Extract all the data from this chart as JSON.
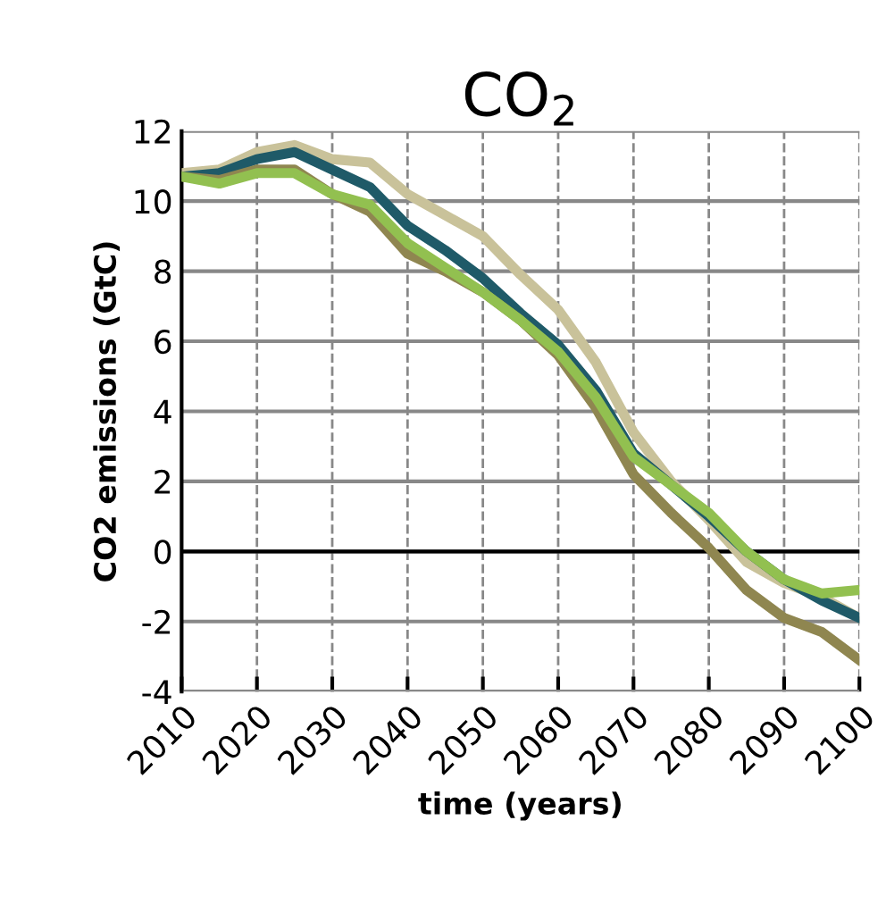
{
  "chart_data": {
    "type": "line",
    "title": "CO$_{2}$",
    "xlabel": "time (years)",
    "ylabel": "CO2 emissions (GtC)",
    "x": [
      2010,
      2015,
      2020,
      2025,
      2030,
      2035,
      2040,
      2045,
      2050,
      2055,
      2060,
      2065,
      2070,
      2075,
      2080,
      2085,
      2090,
      2095,
      2100
    ],
    "series": [
      {
        "color": "#c9c29a",
        "values": [
          10.8,
          10.9,
          11.4,
          11.6,
          11.2,
          11.1,
          10.2,
          9.6,
          9.0,
          7.9,
          6.9,
          5.4,
          3.4,
          2.0,
          0.9,
          -0.3,
          -0.9,
          -1.3,
          -1.9
        ]
      },
      {
        "color": "#1f5a68",
        "values": [
          10.7,
          10.8,
          11.2,
          11.4,
          10.9,
          10.4,
          9.3,
          8.6,
          7.8,
          6.8,
          5.9,
          4.6,
          2.8,
          1.9,
          1.0,
          0.0,
          -0.8,
          -1.4,
          -1.9
        ]
      },
      {
        "color": "#8f8650",
        "values": [
          10.7,
          10.6,
          10.9,
          10.9,
          10.2,
          9.7,
          8.5,
          8.0,
          7.4,
          6.6,
          5.6,
          4.1,
          2.2,
          1.1,
          0.1,
          -1.1,
          -1.9,
          -2.3,
          -3.1
        ]
      },
      {
        "color": "#92c050",
        "values": [
          10.7,
          10.5,
          10.8,
          10.8,
          10.2,
          9.9,
          8.8,
          8.1,
          7.4,
          6.6,
          5.7,
          4.4,
          2.7,
          1.9,
          1.1,
          0.0,
          -0.8,
          -1.2,
          -1.1
        ]
      }
    ],
    "xlim": [
      2010,
      2100
    ],
    "xticks": [
      2010,
      2020,
      2030,
      2040,
      2050,
      2060,
      2070,
      2080,
      2090,
      2100
    ],
    "ylim": [
      -4,
      12
    ],
    "yticks": [
      -4,
      -2,
      0,
      2,
      4,
      6,
      8,
      10,
      12
    ],
    "grid": true,
    "legend": false,
    "marker": "none",
    "line_style": "solid"
  }
}
